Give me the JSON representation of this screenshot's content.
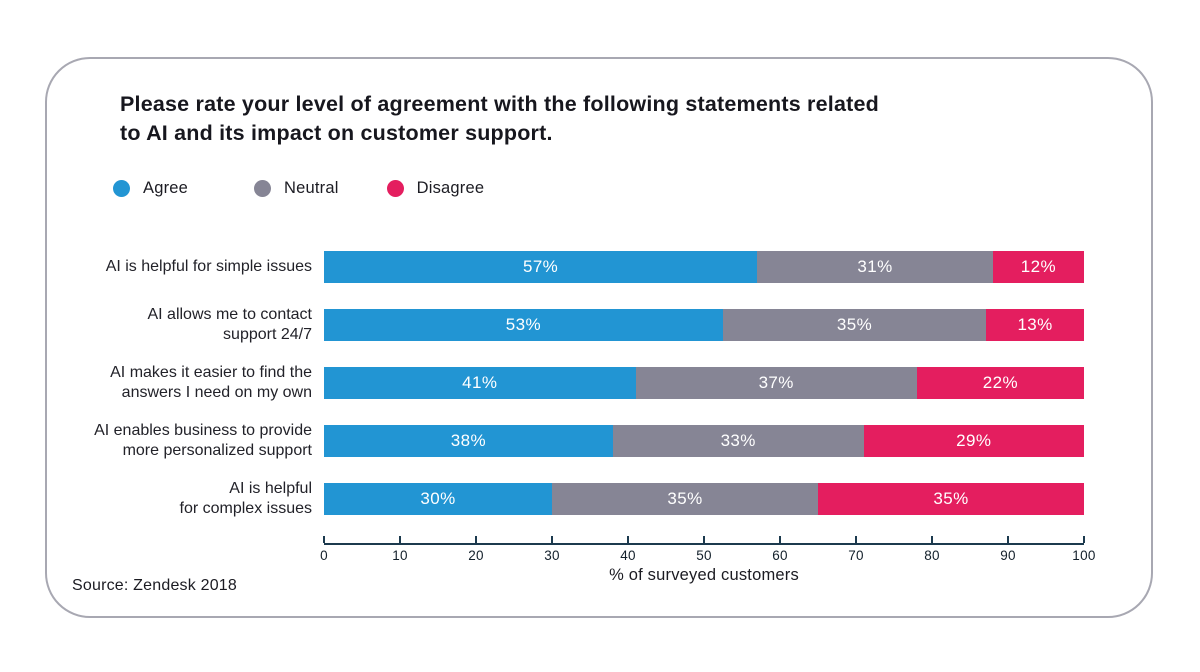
{
  "header": {
    "title_lines": [
      "Please rate your level of agreement with the following statements related",
      "to AI and its impact on customer support."
    ]
  },
  "legend": [
    {
      "label": "Agree",
      "color": "#2295d3"
    },
    {
      "label": "Neutral",
      "color": "#868595"
    },
    {
      "label": "Disagree",
      "color": "#e41e5f"
    }
  ],
  "chart_data": {
    "type": "bar",
    "orientation": "horizontal",
    "stacked": true,
    "title": "Please rate your level of agreement with the following statements related to AI and its impact on customer support.",
    "xlabel": "% of surveyed customers",
    "xlim": [
      0,
      100
    ],
    "x_ticks": [
      0,
      10,
      20,
      30,
      40,
      50,
      60,
      70,
      80,
      90,
      100
    ],
    "value_suffix": "%",
    "legend_position": "top-left",
    "grid": false,
    "series": [
      {
        "name": "Agree",
        "color": "#2295d3"
      },
      {
        "name": "Neutral",
        "color": "#868595"
      },
      {
        "name": "Disagree",
        "color": "#e41e5f"
      }
    ],
    "rows": [
      {
        "label": "AI is helpful for simple issues",
        "label_lines": [
          "AI is helpful for simple issues"
        ],
        "values": [
          57,
          31,
          12
        ]
      },
      {
        "label": "AI allows me to contact support 24/7",
        "label_lines": [
          "AI allows me to contact",
          "support 24/7"
        ],
        "values": [
          53,
          35,
          13
        ]
      },
      {
        "label": "AI makes it easier to find the answers I need on my own",
        "label_lines": [
          "AI makes it easier to find the",
          "answers I need on my own"
        ],
        "values": [
          41,
          37,
          22
        ]
      },
      {
        "label": "AI enables business to provide more personalized support",
        "label_lines": [
          "AI enables business to provide",
          "more personalized support"
        ],
        "values": [
          38,
          33,
          29
        ]
      },
      {
        "label": "AI is helpful for complex issues",
        "label_lines": [
          "AI is helpful",
          "for complex issues"
        ],
        "values": [
          30,
          35,
          35
        ]
      }
    ]
  },
  "source": "Source: Zendesk 2018",
  "colors": {
    "agree": "#2295d3",
    "neutral": "#868595",
    "disagree": "#e41e5f",
    "axis": "#1c3a4e",
    "card_border": "#a8a8b2",
    "bar_value_text": "#ffffff",
    "text": "#1c1c23"
  }
}
